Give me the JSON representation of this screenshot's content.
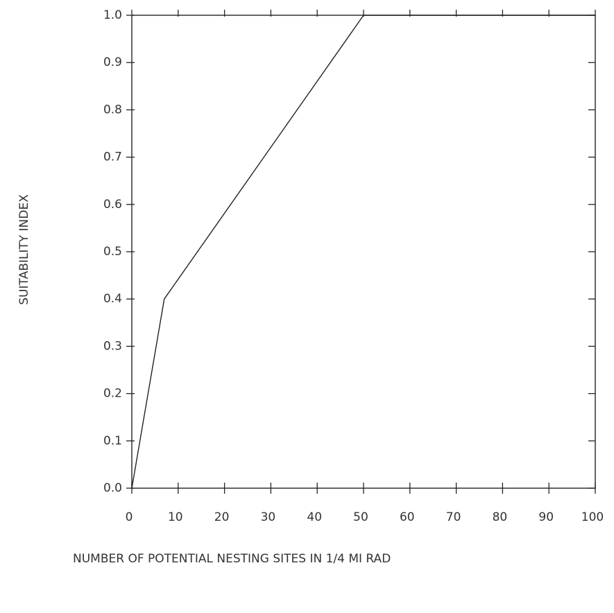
{
  "chart_data": {
    "type": "line",
    "xlabel": "NUMBER OF POTENTIAL NESTING SITES IN 1/4 MI RAD",
    "ylabel": "SUITABILITY INDEX",
    "x": [
      0,
      7,
      50,
      100
    ],
    "series": [
      {
        "color": "#222222",
        "values": [
          0.0,
          0.4,
          1.0,
          1.0
        ]
      }
    ],
    "xlim": [
      0,
      100
    ],
    "xticks": [
      0,
      10,
      20,
      30,
      40,
      50,
      60,
      70,
      80,
      90,
      100
    ],
    "ylim": [
      0,
      1
    ],
    "yticks": [
      {
        "value": 0,
        "label": "0.0"
      },
      0.1,
      0.2,
      0.3,
      0.4,
      0.5,
      0.6,
      0.7,
      0.8,
      0.9,
      {
        "value": 1,
        "label": "1.0"
      }
    ]
  }
}
